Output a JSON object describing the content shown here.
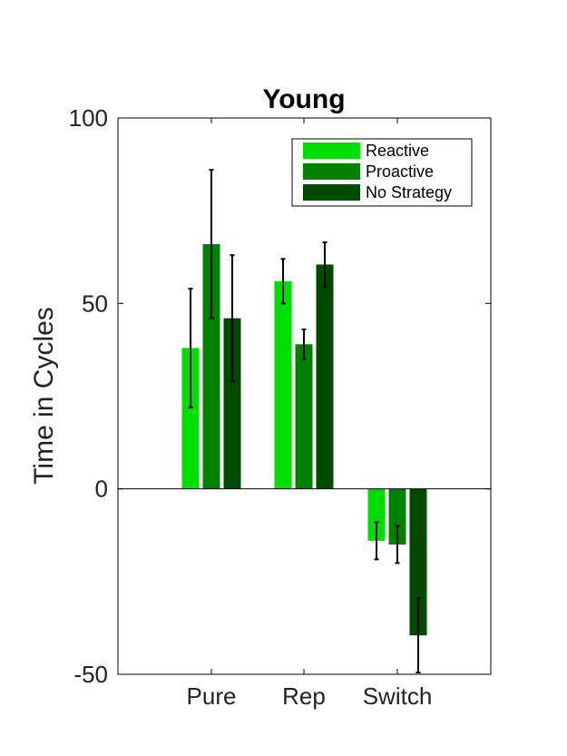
{
  "chart_data": {
    "type": "bar",
    "title": "Young",
    "xlabel": "",
    "ylabel": "Time in Cycles",
    "ylim": [
      -50,
      100
    ],
    "yticks": [
      -50,
      0,
      50,
      100
    ],
    "ytick_labels": [
      "-50",
      "0",
      "50",
      "100"
    ],
    "categories": [
      "Pure",
      "Rep",
      "Switch"
    ],
    "legend_position": "top-right",
    "grid": false,
    "series": [
      {
        "name": "Reactive",
        "color": "#00DD00",
        "values": [
          38,
          56,
          -14
        ],
        "errors": [
          16,
          6,
          5
        ]
      },
      {
        "name": "Proactive",
        "color": "#008200",
        "values": [
          66,
          39,
          -15
        ],
        "errors": [
          20,
          4,
          5
        ]
      },
      {
        "name": "No Strategy",
        "color": "#004A00",
        "values": [
          46,
          60.5,
          -39.5
        ],
        "errors": [
          17,
          6,
          10
        ]
      }
    ]
  }
}
